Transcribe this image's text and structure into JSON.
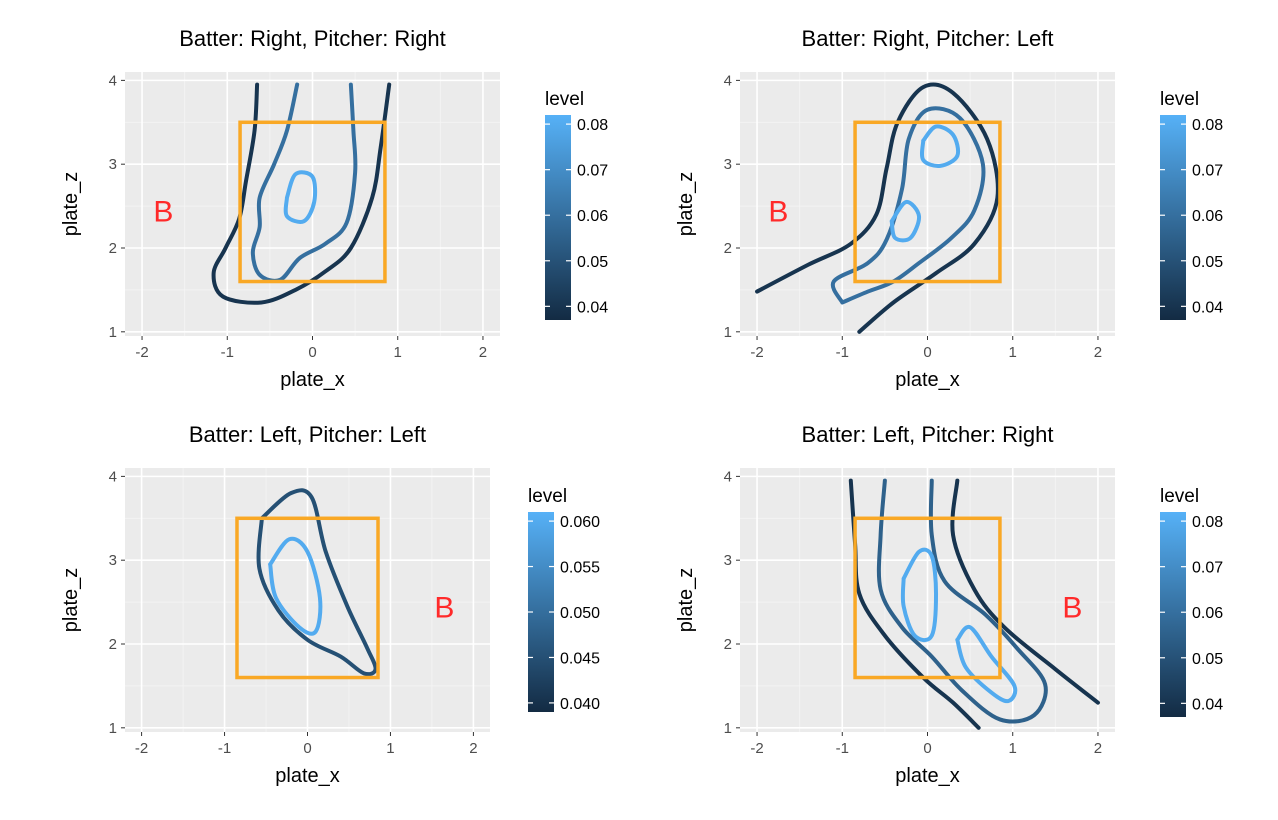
{
  "colors": {
    "low": "#132b43",
    "high": "#56b1f7",
    "zone": "#f9a825",
    "annotation": "#ff2a2a"
  },
  "chart_data": [
    {
      "type": "contour",
      "title": "Batter: Right, Pitcher: Right",
      "xlabel": "plate_x",
      "ylabel": "plate_z",
      "xlim": [
        -2.2,
        2.2
      ],
      "ylim": [
        0.95,
        4.1
      ],
      "xticks": [
        "-2",
        "-1",
        "0",
        "1",
        "2"
      ],
      "yticks": [
        "1",
        "2",
        "3",
        "4"
      ],
      "grid": true,
      "strike_zone": {
        "x": [
          -0.85,
          0.85
        ],
        "z": [
          1.6,
          3.5
        ]
      },
      "annotation": {
        "text": "B",
        "x": -1.75,
        "z": 2.45
      },
      "legend": {
        "title": "level",
        "range": [
          0.037,
          0.082
        ],
        "labels": [
          "0.08",
          "0.07",
          "0.06",
          "0.05",
          "0.04"
        ],
        "values": [
          0.08,
          0.07,
          0.06,
          0.05,
          0.04
        ]
      },
      "contours": [
        {
          "level": 0.04,
          "points": [
            [
              -0.65,
              3.95
            ],
            [
              -0.68,
              3.4
            ],
            [
              -0.78,
              2.8
            ],
            [
              -0.86,
              2.35
            ],
            [
              -1.02,
              2.0
            ],
            [
              -1.16,
              1.7
            ],
            [
              -1.05,
              1.42
            ],
            [
              -0.6,
              1.35
            ],
            [
              -0.2,
              1.5
            ],
            [
              0.15,
              1.72
            ],
            [
              0.45,
              2.0
            ],
            [
              0.7,
              2.6
            ],
            [
              0.8,
              3.2
            ],
            [
              0.9,
              3.95
            ]
          ]
        },
        {
          "level": 0.06,
          "points": [
            [
              -0.18,
              3.95
            ],
            [
              -0.3,
              3.4
            ],
            [
              -0.45,
              3.0
            ],
            [
              -0.62,
              2.6
            ],
            [
              -0.62,
              2.25
            ],
            [
              -0.7,
              1.95
            ],
            [
              -0.62,
              1.68
            ],
            [
              -0.38,
              1.62
            ],
            [
              -0.15,
              1.88
            ],
            [
              0.15,
              2.05
            ],
            [
              0.4,
              2.3
            ],
            [
              0.5,
              2.9
            ],
            [
              0.48,
              3.4
            ],
            [
              0.45,
              3.95
            ]
          ]
        },
        {
          "level": 0.08,
          "points": [
            [
              -0.3,
              2.6
            ],
            [
              -0.2,
              2.88
            ],
            [
              0.0,
              2.85
            ],
            [
              0.02,
              2.55
            ],
            [
              -0.1,
              2.32
            ],
            [
              -0.3,
              2.38
            ],
            [
              -0.3,
              2.6
            ]
          ]
        }
      ]
    },
    {
      "type": "contour",
      "title": "Batter: Right, Pitcher: Left",
      "xlabel": "plate_x",
      "ylabel": "plate_z",
      "xlim": [
        -2.2,
        2.2
      ],
      "ylim": [
        0.95,
        4.1
      ],
      "xticks": [
        "-2",
        "-1",
        "0",
        "1",
        "2"
      ],
      "yticks": [
        "1",
        "2",
        "3",
        "4"
      ],
      "grid": true,
      "strike_zone": {
        "x": [
          -0.85,
          0.85
        ],
        "z": [
          1.6,
          3.5
        ]
      },
      "annotation": {
        "text": "B",
        "x": -1.75,
        "z": 2.45
      },
      "legend": {
        "title": "level",
        "range": [
          0.037,
          0.082
        ],
        "labels": [
          "0.08",
          "0.07",
          "0.06",
          "0.05",
          "0.04"
        ],
        "values": [
          0.08,
          0.07,
          0.06,
          0.05,
          0.04
        ]
      },
      "contours": [
        {
          "level": 0.04,
          "points": [
            [
              -2.0,
              1.48
            ],
            [
              -1.4,
              1.8
            ],
            [
              -0.9,
              2.05
            ],
            [
              -0.6,
              2.4
            ],
            [
              -0.48,
              2.95
            ],
            [
              -0.35,
              3.5
            ],
            [
              -0.05,
              3.92
            ],
            [
              0.3,
              3.85
            ],
            [
              0.7,
              3.3
            ],
            [
              0.82,
              2.6
            ],
            [
              0.55,
              2.05
            ],
            [
              0.1,
              1.7
            ],
            [
              -0.4,
              1.35
            ],
            [
              -0.8,
              1.0
            ]
          ]
        },
        {
          "level": 0.06,
          "points": [
            [
              -1.0,
              1.35
            ],
            [
              -1.1,
              1.6
            ],
            [
              -0.7,
              1.82
            ],
            [
              -0.48,
              2.1
            ],
            [
              -0.3,
              2.7
            ],
            [
              -0.22,
              3.3
            ],
            [
              0.0,
              3.65
            ],
            [
              0.38,
              3.55
            ],
            [
              0.65,
              3.0
            ],
            [
              0.55,
              2.45
            ],
            [
              0.28,
              2.12
            ],
            [
              -0.1,
              1.82
            ],
            [
              -0.4,
              1.6
            ],
            [
              -0.7,
              1.48
            ],
            [
              -1.0,
              1.35
            ]
          ]
        },
        {
          "level": 0.08,
          "points": [
            [
              -0.05,
              3.28
            ],
            [
              0.1,
              3.45
            ],
            [
              0.3,
              3.35
            ],
            [
              0.35,
              3.1
            ],
            [
              0.15,
              2.98
            ],
            [
              -0.05,
              3.05
            ],
            [
              -0.05,
              3.28
            ]
          ]
        },
        {
          "level": 0.08,
          "points": [
            [
              -0.42,
              2.32
            ],
            [
              -0.25,
              2.55
            ],
            [
              -0.1,
              2.38
            ],
            [
              -0.2,
              2.12
            ],
            [
              -0.38,
              2.12
            ],
            [
              -0.42,
              2.32
            ]
          ]
        }
      ]
    },
    {
      "type": "contour",
      "title": "Batter: Left, Pitcher: Left",
      "xlabel": "plate_x",
      "ylabel": "plate_z",
      "xlim": [
        -2.2,
        2.2
      ],
      "ylim": [
        0.95,
        4.1
      ],
      "xticks": [
        "-2",
        "-1",
        "0",
        "1",
        "2"
      ],
      "yticks": [
        "1",
        "2",
        "3",
        "4"
      ],
      "grid": true,
      "strike_zone": {
        "x": [
          -0.85,
          0.85
        ],
        "z": [
          1.6,
          3.5
        ]
      },
      "annotation": {
        "text": "B",
        "x": 1.65,
        "z": 2.45
      },
      "legend": {
        "title": "level",
        "range": [
          0.039,
          0.061
        ],
        "labels": [
          "0.060",
          "0.055",
          "0.050",
          "0.045",
          "0.040"
        ],
        "values": [
          0.06,
          0.055,
          0.05,
          0.045,
          0.04
        ]
      },
      "contours": [
        {
          "level": 0.045,
          "points": [
            [
              -0.55,
              3.5
            ],
            [
              -0.2,
              3.8
            ],
            [
              0.05,
              3.75
            ],
            [
              0.22,
              3.1
            ],
            [
              0.48,
              2.45
            ],
            [
              0.72,
              1.95
            ],
            [
              0.82,
              1.7
            ],
            [
              0.68,
              1.65
            ],
            [
              0.4,
              1.85
            ],
            [
              0.0,
              2.05
            ],
            [
              -0.35,
              2.4
            ],
            [
              -0.58,
              2.9
            ],
            [
              -0.55,
              3.5
            ]
          ]
        },
        {
          "level": 0.06,
          "points": [
            [
              -0.45,
              2.95
            ],
            [
              -0.22,
              3.25
            ],
            [
              0.0,
              3.1
            ],
            [
              0.15,
              2.55
            ],
            [
              0.1,
              2.15
            ],
            [
              -0.1,
              2.2
            ],
            [
              -0.38,
              2.55
            ],
            [
              -0.45,
              2.95
            ]
          ]
        }
      ]
    },
    {
      "type": "contour",
      "title": "Batter: Left, Pitcher: Right",
      "xlabel": "plate_x",
      "ylabel": "plate_z",
      "xlim": [
        -2.2,
        2.2
      ],
      "ylim": [
        0.95,
        4.1
      ],
      "xticks": [
        "-2",
        "-1",
        "0",
        "1",
        "2"
      ],
      "yticks": [
        "1",
        "2",
        "3",
        "4"
      ],
      "grid": true,
      "strike_zone": {
        "x": [
          -0.85,
          0.85
        ],
        "z": [
          1.6,
          3.5
        ]
      },
      "annotation": {
        "text": "B",
        "x": 1.7,
        "z": 2.45
      },
      "legend": {
        "title": "level",
        "range": [
          0.037,
          0.082
        ],
        "labels": [
          "0.08",
          "0.07",
          "0.06",
          "0.05",
          "0.04"
        ],
        "values": [
          0.08,
          0.07,
          0.06,
          0.05,
          0.04
        ]
      },
      "contours": [
        {
          "level": 0.04,
          "points": [
            [
              -0.9,
              3.95
            ],
            [
              -0.85,
              3.2
            ],
            [
              -0.8,
              2.6
            ],
            [
              -0.5,
              2.1
            ],
            [
              -0.05,
              1.6
            ],
            [
              0.3,
              1.3
            ],
            [
              0.6,
              1.0
            ]
          ]
        },
        {
          "level": 0.04,
          "points": [
            [
              0.35,
              3.95
            ],
            [
              0.3,
              3.3
            ],
            [
              0.55,
              2.65
            ],
            [
              0.9,
              2.2
            ],
            [
              1.5,
              1.7
            ],
            [
              2.0,
              1.3
            ]
          ]
        },
        {
          "level": 0.055,
          "points": [
            [
              -0.5,
              3.95
            ],
            [
              -0.55,
              3.3
            ],
            [
              -0.55,
              2.65
            ],
            [
              -0.3,
              2.2
            ],
            [
              0.05,
              1.85
            ],
            [
              0.4,
              1.45
            ],
            [
              0.85,
              1.1
            ],
            [
              1.25,
              1.15
            ],
            [
              1.38,
              1.52
            ],
            [
              1.05,
              1.95
            ],
            [
              0.68,
              2.35
            ],
            [
              0.2,
              2.75
            ],
            [
              0.05,
              3.3
            ],
            [
              0.05,
              3.95
            ]
          ]
        },
        {
          "level": 0.08,
          "points": [
            [
              -0.28,
              2.78
            ],
            [
              -0.1,
              3.1
            ],
            [
              0.05,
              3.05
            ],
            [
              0.1,
              2.6
            ],
            [
              0.05,
              2.1
            ],
            [
              -0.15,
              2.1
            ],
            [
              -0.28,
              2.45
            ],
            [
              -0.28,
              2.78
            ]
          ]
        },
        {
          "level": 0.08,
          "points": [
            [
              0.35,
              2.05
            ],
            [
              0.5,
              2.2
            ],
            [
              0.75,
              1.85
            ],
            [
              1.02,
              1.5
            ],
            [
              0.95,
              1.32
            ],
            [
              0.75,
              1.42
            ],
            [
              0.45,
              1.72
            ],
            [
              0.35,
              2.05
            ]
          ]
        }
      ]
    }
  ]
}
